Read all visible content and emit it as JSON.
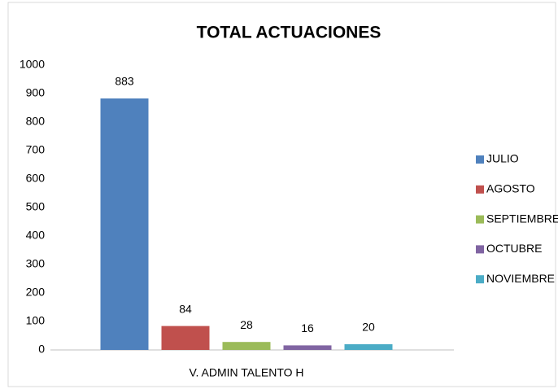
{
  "chart_data": {
    "type": "bar",
    "title": "TOTAL ACTUACIONES",
    "categories": [
      "V. ADMIN TALENTO H"
    ],
    "series": [
      {
        "name": "JULIO",
        "color": "#4f81bd",
        "values": [
          883
        ]
      },
      {
        "name": "AGOSTO",
        "color": "#c0504d",
        "values": [
          84
        ]
      },
      {
        "name": "SEPTIEMBRE",
        "color": "#9bbb59",
        "values": [
          28
        ]
      },
      {
        "name": "OCTUBRE",
        "color": "#8064a2",
        "values": [
          16
        ]
      },
      {
        "name": "NOVIEMBRE",
        "color": "#4bacc6",
        "values": [
          20
        ]
      }
    ],
    "ylim": [
      0,
      1000
    ],
    "yticks": [
      0,
      100,
      200,
      300,
      400,
      500,
      600,
      700,
      800,
      900,
      1000
    ],
    "grid": false,
    "legend": "right"
  }
}
